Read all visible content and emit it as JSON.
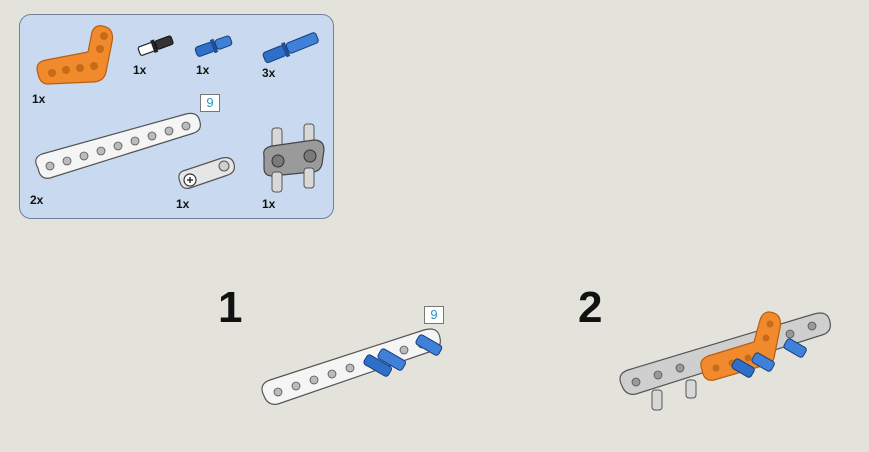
{
  "parts_list": {
    "items": [
      {
        "name": "orange-l-beam",
        "qty": "1x",
        "color": "#f08a2c"
      },
      {
        "name": "black-axle-pin",
        "qty": "1x",
        "color": "#222222"
      },
      {
        "name": "blue-short-pin",
        "qty": "1x",
        "color": "#2f6ec9"
      },
      {
        "name": "blue-long-pin",
        "qty": "3x",
        "color": "#2f6ec9"
      },
      {
        "name": "white-beam-9",
        "qty": "2x",
        "color": "#f2f2f2",
        "length": "9"
      },
      {
        "name": "gray-pin-connector",
        "qty": "1x",
        "color": "#cfcfcf"
      },
      {
        "name": "gray-double-connector",
        "qty": "1x",
        "color": "#9a9a9a"
      }
    ]
  },
  "steps": [
    {
      "number": "1",
      "length": "9"
    },
    {
      "number": "2"
    }
  ]
}
